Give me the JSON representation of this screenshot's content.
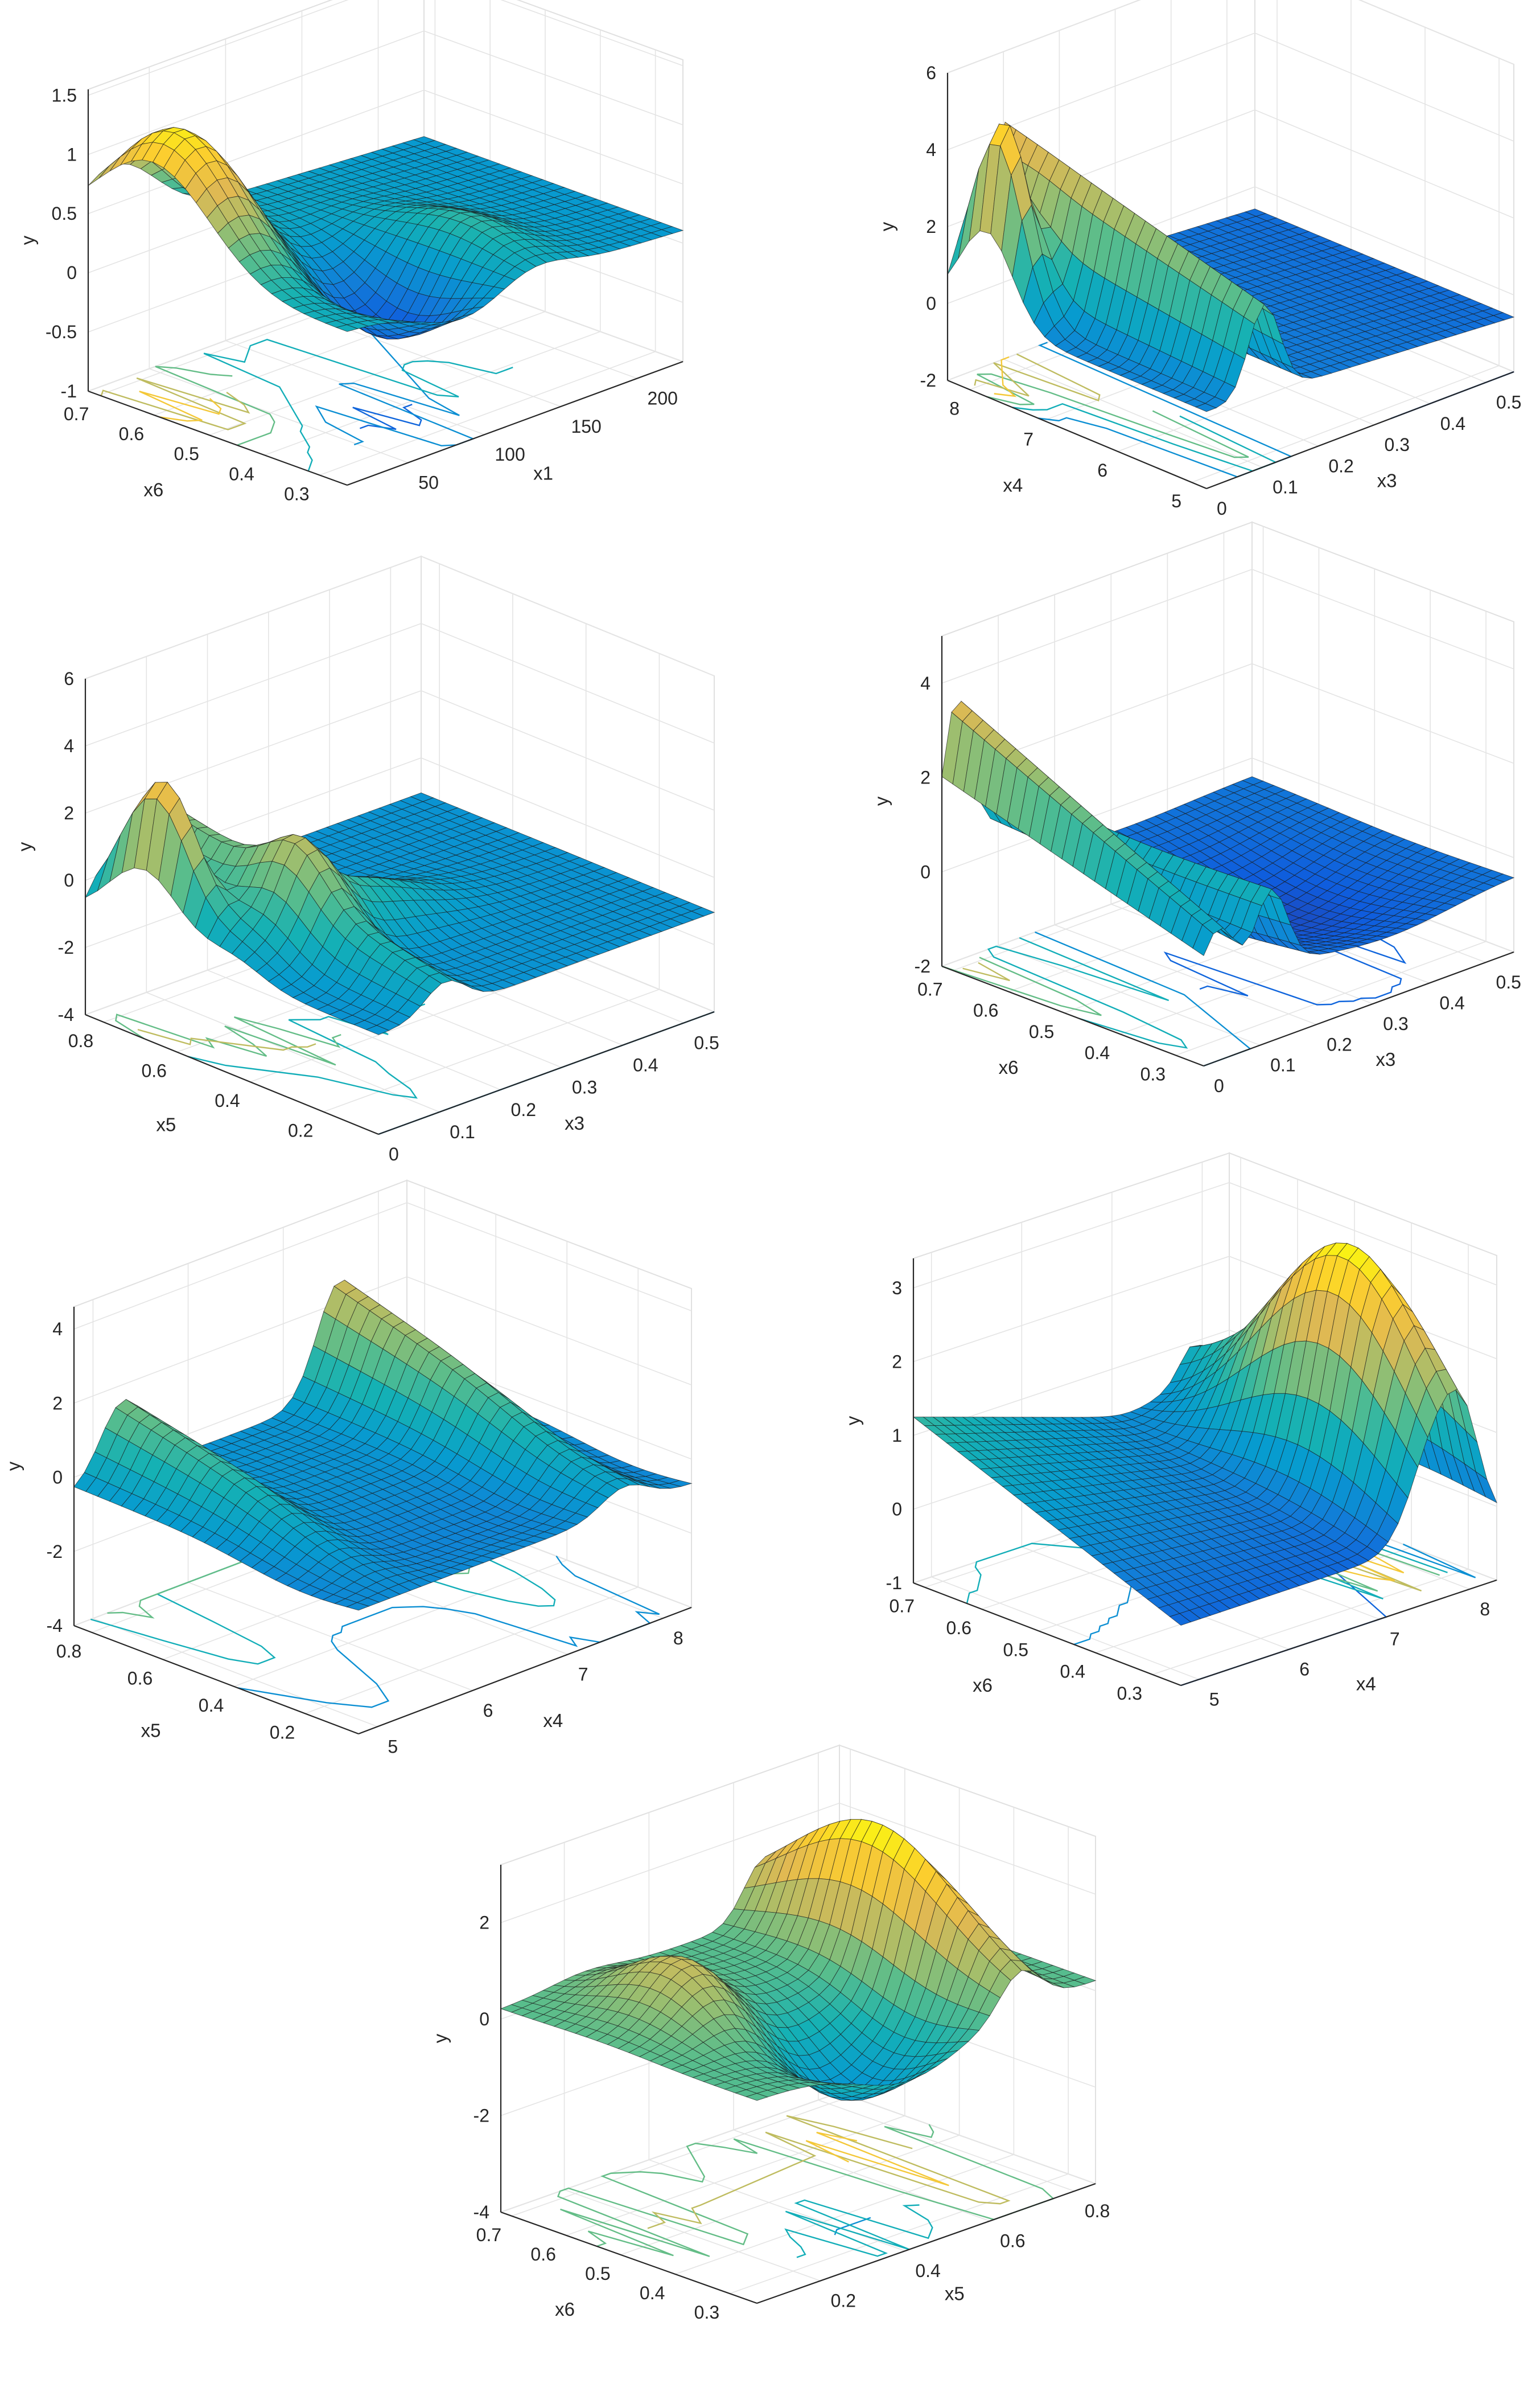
{
  "chart_data": [
    {
      "type": "surface",
      "zlabel": "y",
      "xlabel": "x1",
      "ylabel": "x6",
      "x_ticks": [
        "50",
        "100",
        "150",
        "200"
      ],
      "y_ticks": [
        "0.3",
        "0.4",
        "0.5",
        "0.6",
        "0.7"
      ],
      "z_ticks": [
        "-1",
        "-0.5",
        "0",
        "0.5",
        "1",
        "1.5"
      ],
      "x_range": [
        10,
        230
      ],
      "y_range": [
        0.25,
        0.72
      ],
      "z_range": [
        -1,
        1.55
      ],
      "colormap": "parula",
      "contour_projection": true,
      "surface_peak": 1.4,
      "surface_min": -0.5
    },
    {
      "type": "surface",
      "zlabel": "y",
      "xlabel": "x3",
      "ylabel": "x4",
      "x_ticks": [
        "0",
        "0.1",
        "0.2",
        "0.3",
        "0.4",
        "0.5"
      ],
      "y_ticks": [
        "5",
        "6",
        "7",
        "8"
      ],
      "z_ticks": [
        "-2",
        "0",
        "2",
        "4",
        "6"
      ],
      "x_range": [
        0,
        0.55
      ],
      "y_range": [
        4.8,
        8.3
      ],
      "z_range": [
        -2,
        6
      ],
      "colormap": "parula",
      "contour_projection": true,
      "surface_peak": 5.4,
      "surface_min": -1.8
    },
    {
      "type": "surface",
      "zlabel": "y",
      "xlabel": "x3",
      "ylabel": "x5",
      "x_ticks": [
        "0",
        "0.1",
        "0.2",
        "0.3",
        "0.4",
        "0.5"
      ],
      "y_ticks": [
        "0.2",
        "0.4",
        "0.6",
        "0.8"
      ],
      "z_ticks": [
        "-4",
        "-2",
        "0",
        "2",
        "4",
        "6"
      ],
      "x_range": [
        0,
        0.55
      ],
      "y_range": [
        0.05,
        0.85
      ],
      "z_range": [
        -4,
        6
      ],
      "colormap": "parula",
      "contour_projection": true,
      "surface_peak": 4.7,
      "surface_min": -3.5
    },
    {
      "type": "surface",
      "zlabel": "y",
      "xlabel": "x3",
      "ylabel": "x6",
      "x_ticks": [
        "0",
        "0.1",
        "0.2",
        "0.3",
        "0.4",
        "0.5"
      ],
      "y_ticks": [
        "0.3",
        "0.4",
        "0.5",
        "0.6",
        "0.7"
      ],
      "z_ticks": [
        "-2",
        "0",
        "2",
        "4"
      ],
      "x_range": [
        0,
        0.55
      ],
      "y_range": [
        0.25,
        0.72
      ],
      "z_range": [
        -2,
        5
      ],
      "colormap": "parula",
      "contour_projection": true,
      "surface_peak": 4.9,
      "surface_min": -1.7
    },
    {
      "type": "surface",
      "zlabel": "y",
      "xlabel": "x4",
      "ylabel": "x5",
      "x_ticks": [
        "5",
        "6",
        "7",
        "8"
      ],
      "y_ticks": [
        "0.2",
        "0.4",
        "0.6",
        "0.8"
      ],
      "z_ticks": [
        "-4",
        "-2",
        "0",
        "2",
        "4"
      ],
      "x_range": [
        4.8,
        8.3
      ],
      "y_range": [
        0.05,
        0.85
      ],
      "z_range": [
        -4,
        4.6
      ],
      "colormap": "parula",
      "contour_projection": true,
      "surface_peak": 4.3,
      "surface_min": -2.5
    },
    {
      "type": "surface",
      "zlabel": "y",
      "xlabel": "x4",
      "ylabel": "x6",
      "x_ticks": [
        "5",
        "6",
        "7",
        "8"
      ],
      "y_ticks": [
        "0.3",
        "0.4",
        "0.5",
        "0.6",
        "0.7"
      ],
      "z_ticks": [
        "-1",
        "0",
        "1",
        "2",
        "3"
      ],
      "x_range": [
        4.8,
        8.3
      ],
      "y_range": [
        0.25,
        0.72
      ],
      "z_range": [
        -1,
        3.4
      ],
      "colormap": "parula",
      "contour_projection": true,
      "surface_peak": 3.3,
      "surface_min": -0.8
    },
    {
      "type": "surface",
      "zlabel": "y",
      "xlabel": "x5",
      "ylabel": "x6",
      "x_ticks": [
        "0.2",
        "0.4",
        "0.6",
        "0.8"
      ],
      "y_ticks": [
        "0.3",
        "0.4",
        "0.5",
        "0.6",
        "0.7"
      ],
      "z_ticks": [
        "-4",
        "-2",
        "0",
        "2"
      ],
      "x_range": [
        0.05,
        0.85
      ],
      "y_range": [
        0.25,
        0.72
      ],
      "z_range": [
        -4,
        3.2
      ],
      "colormap": "parula",
      "contour_projection": true,
      "surface_peak": 3.0,
      "surface_min": -3.2
    }
  ]
}
